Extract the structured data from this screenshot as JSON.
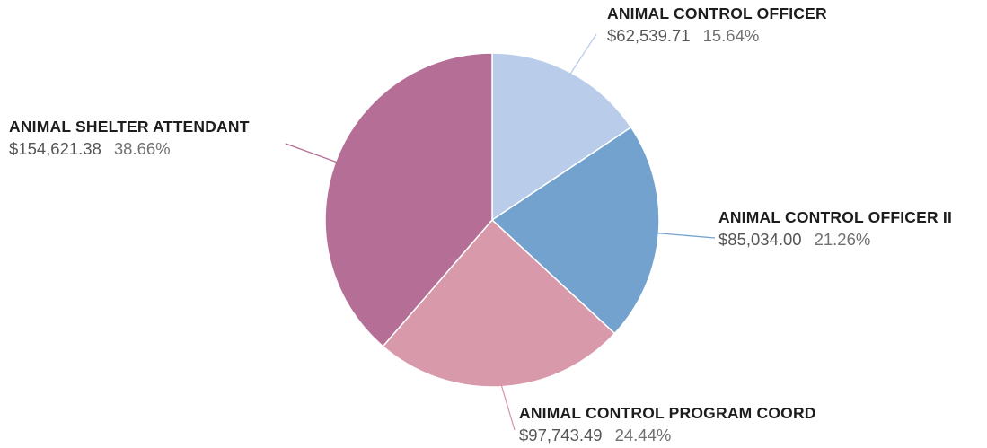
{
  "chart_data": {
    "type": "pie",
    "start_angle_deg": 0,
    "direction": "clockwise",
    "slices": [
      {
        "label": "ANIMAL CONTROL OFFICER",
        "value": 62539.71,
        "value_text": "$62,539.71",
        "percent_text": "15.64%",
        "color": "#b9cdea"
      },
      {
        "label": "ANIMAL CONTROL OFFICER II",
        "value": 85034.0,
        "value_text": "$85,034.00",
        "percent_text": "21.26%",
        "color": "#73a2ce"
      },
      {
        "label": "ANIMAL CONTROL PROGRAM COORD",
        "value": 97743.49,
        "value_text": "$97,743.49",
        "percent_text": "24.44%",
        "color": "#d89aaa"
      },
      {
        "label": "ANIMAL SHELTER ATTENDANT",
        "value": 154621.38,
        "value_text": "$154,621.38",
        "percent_text": "38.66%",
        "color": "#b56f96"
      }
    ]
  }
}
